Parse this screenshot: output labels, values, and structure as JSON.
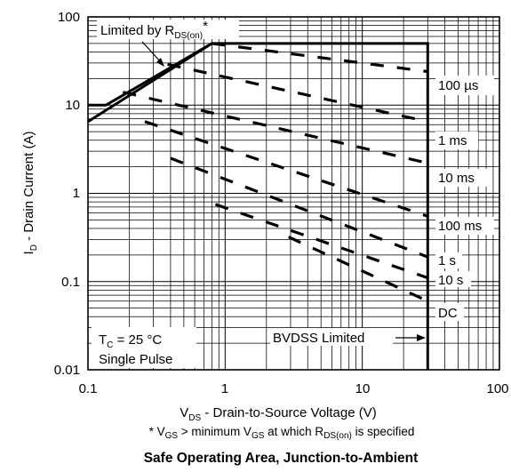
{
  "chart_data": {
    "type": "line",
    "title": "",
    "caption": "Safe Operating Area, Junction-to-Ambient",
    "footnote": {
      "prefix": "* V",
      "sub1": "GS",
      "mid1": " > minimum V",
      "sub2": "GS",
      "mid2": " at which R",
      "sub3": "DS(on)",
      "end": " is specified"
    },
    "xlabel": {
      "main": "V",
      "sub": "DS",
      "rest": " - Drain-to-Source Voltage (V)"
    },
    "ylabel": {
      "main": "I",
      "sub": "D",
      "rest": " - Drain Current (A)"
    },
    "x_scale": "log",
    "y_scale": "log",
    "xlim": [
      0.1,
      100
    ],
    "ylim": [
      0.01,
      100
    ],
    "grid": true,
    "x_ticks": [
      {
        "value": 0.1,
        "label": "0.1"
      },
      {
        "value": 1,
        "label": "1"
      },
      {
        "value": 10,
        "label": "10"
      },
      {
        "value": 100,
        "label": "100"
      }
    ],
    "y_ticks": [
      {
        "value": 100,
        "label": "100"
      },
      {
        "value": 10,
        "label": "10"
      },
      {
        "value": 1,
        "label": "1"
      },
      {
        "value": 0.1,
        "label": "0.1"
      },
      {
        "value": 0.01,
        "label": "0.01"
      }
    ],
    "series": [
      {
        "name": "Limited by RDS(on)",
        "style": "solid",
        "x": [
          0.1,
          0.8
        ],
        "y": [
          6.5,
          50
        ]
      },
      {
        "name": "DC",
        "style": "solid",
        "x": [
          0.1,
          0.135,
          0.8,
          30,
          30
        ],
        "y": [
          10,
          10,
          50,
          50,
          0.01
        ]
      },
      {
        "name": "100 µs",
        "style": "dashed",
        "x": [
          0.8,
          30
        ],
        "y": [
          50,
          24
        ]
      },
      {
        "name": "1 ms",
        "style": "dashed",
        "x": [
          0.38,
          30
        ],
        "y": [
          29,
          6.5
        ]
      },
      {
        "name": "10 ms",
        "style": "dashed",
        "x": [
          0.18,
          30
        ],
        "y": [
          14,
          2.2
        ]
      },
      {
        "name": "100 ms",
        "style": "dashed",
        "x": [
          0.26,
          30
        ],
        "y": [
          6.5,
          0.55
        ]
      },
      {
        "name": "1 s",
        "style": "dashed",
        "x": [
          0.4,
          30
        ],
        "y": [
          2.5,
          0.19
        ]
      },
      {
        "name": "10 s",
        "style": "dashed",
        "x": [
          0.85,
          30
        ],
        "y": [
          0.75,
          0.11
        ]
      },
      {
        "name": "DC dashed",
        "style": "dashed",
        "x": [
          2.9,
          30
        ],
        "y": [
          0.32,
          0.06
        ]
      }
    ],
    "annotations": [
      {
        "name": "rds-limit",
        "parts": [
          "Limited by R",
          "DS(on)",
          "*"
        ]
      },
      {
        "name": "temp",
        "parts": [
          "T",
          "C",
          " = 25 °C"
        ]
      },
      {
        "name": "pulse",
        "parts": [
          "Single Pulse"
        ]
      },
      {
        "name": "bvdss",
        "parts": [
          "BVDSS Limited"
        ]
      }
    ],
    "curve_labels": [
      "100 µs",
      "1 ms",
      "10 ms",
      "100 ms",
      "1 s",
      "10 s",
      "DC"
    ]
  }
}
